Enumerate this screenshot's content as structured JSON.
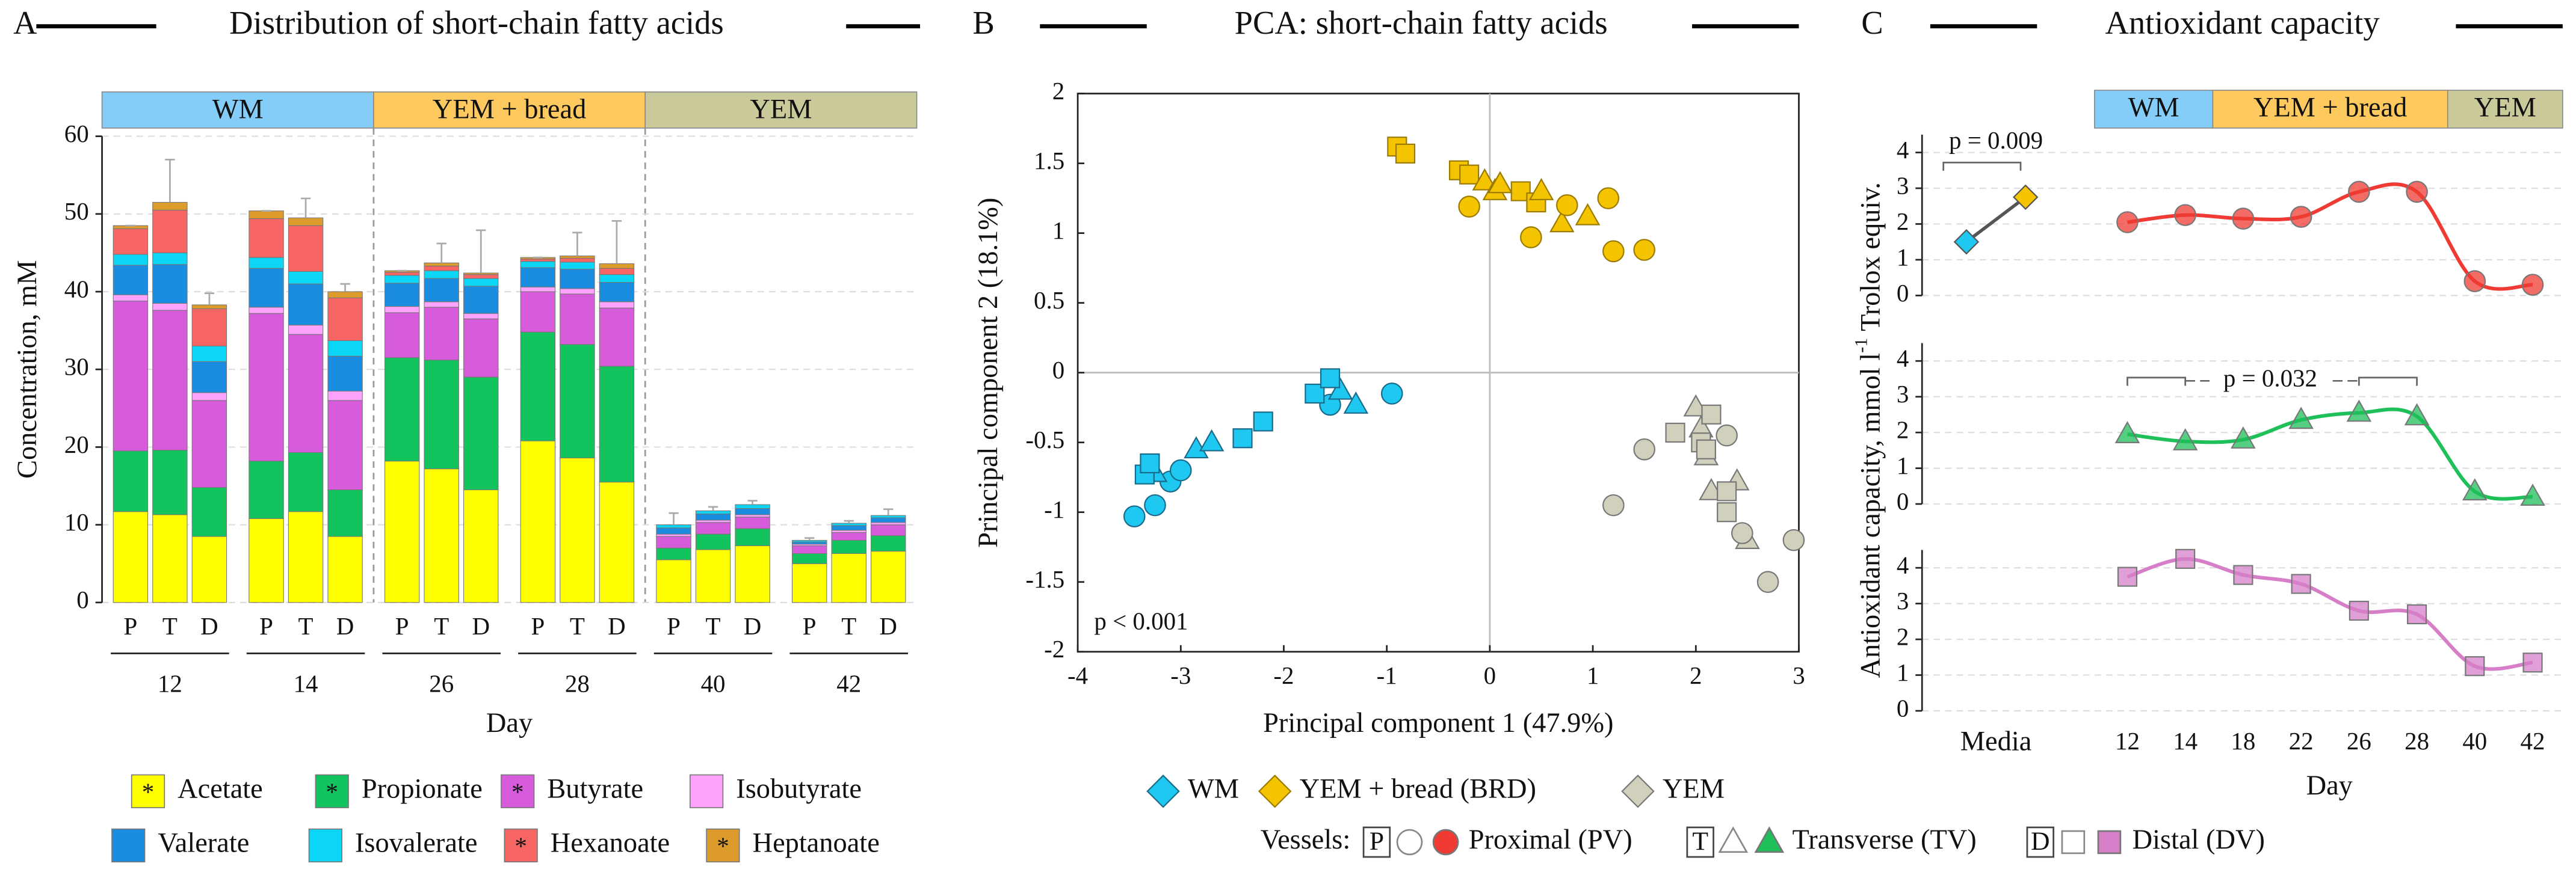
{
  "chart_data": [
    {
      "type": "bar",
      "panel": "A",
      "title": "Distribution of short-chain fatty acids",
      "phases": [
        {
          "name": "WM",
          "color": "#85cdf9"
        },
        {
          "name": "YEM + bread",
          "color": "#fec95f"
        },
        {
          "name": "YEM",
          "color": "#c9c99a"
        }
      ],
      "categories": [
        "P",
        "T",
        "D",
        "P",
        "T",
        "D",
        "P",
        "T",
        "D",
        "P",
        "T",
        "D",
        "P",
        "T",
        "D",
        "P",
        "T",
        "D"
      ],
      "groups": [
        "12",
        "14",
        "26",
        "28",
        "40",
        "42"
      ],
      "xlabel": "Day",
      "ylabel": "Concentration, mM",
      "ylim": [
        0,
        60
      ],
      "yticks": [
        0,
        10,
        20,
        30,
        40,
        50,
        60
      ],
      "grid": true,
      "series": [
        {
          "name": "Acetate",
          "mark": "*",
          "color": "#ffff00",
          "values": [
            11.7,
            11.3,
            8.5,
            10.8,
            11.7,
            8.5,
            18.2,
            17.2,
            14.5,
            20.8,
            18.6,
            15.5,
            5.5,
            6.8,
            7.3,
            5,
            6.3,
            6.6
          ]
        },
        {
          "name": "Propionate",
          "mark": "*",
          "color": "#13c35e",
          "values": [
            7.8,
            8.3,
            6.3,
            7.4,
            7.6,
            6,
            13.3,
            14,
            14.5,
            14,
            14.6,
            14.9,
            1.5,
            2,
            2.2,
            1.3,
            1.7,
            2
          ]
        },
        {
          "name": "Butyrate",
          "mark": "*",
          "color": "#d65cdb",
          "values": [
            19.3,
            18,
            11.2,
            19,
            15.2,
            11.5,
            5.8,
            6.8,
            7.5,
            5.2,
            6.5,
            7.5,
            1.5,
            1.5,
            1.5,
            1,
            1,
            1.4
          ]
        },
        {
          "name": "Isobutyrate",
          "color": "#ffa3ff",
          "values": [
            0.8,
            0.9,
            1,
            0.8,
            1.2,
            1.2,
            0.8,
            0.7,
            0.7,
            0.6,
            0.7,
            0.8,
            0.3,
            0.3,
            0.3,
            0.2,
            0.3,
            0.3
          ]
        },
        {
          "name": "Valerate",
          "color": "#1a8de0",
          "values": [
            3.8,
            5,
            4,
            5,
            5.3,
            4.5,
            3,
            3,
            3.5,
            2.5,
            2.5,
            2.5,
            0.8,
            0.8,
            0.8,
            0.3,
            0.6,
            0.6
          ]
        },
        {
          "name": "Isovalerate",
          "color": "#0bd6f5",
          "values": [
            1.4,
            1.5,
            2,
            1.4,
            1.6,
            2,
            1,
            1,
            1,
            0.8,
            0.9,
            1,
            0.4,
            0.4,
            0.5,
            0.2,
            0.3,
            0.3
          ]
        },
        {
          "name": "Hexanoate",
          "mark": "*",
          "color": "#f76565",
          "values": [
            3.3,
            5.5,
            4.8,
            5,
            5.9,
            5.5,
            0.4,
            0.6,
            0.5,
            0.3,
            0.5,
            0.8,
            0,
            0,
            0,
            0,
            0,
            0
          ]
        },
        {
          "name": "Heptanoate",
          "mark": "*",
          "color": "#dd9b2b",
          "values": [
            0.4,
            1,
            0.5,
            1,
            1,
            0.8,
            0.2,
            0.4,
            0.2,
            0.2,
            0.3,
            0.6,
            0,
            0,
            0,
            0,
            0,
            0
          ]
        }
      ],
      "errors": [
        0,
        5.5,
        1.5,
        0,
        2.5,
        1,
        0,
        2.5,
        5.5,
        0,
        3,
        5.5,
        1.5,
        0.5,
        0.5,
        0.3,
        0.3,
        0.8
      ]
    },
    {
      "type": "scatter",
      "panel": "B",
      "title": "PCA: short-chain fatty acids",
      "xlabel": "Principal component 1 (47.9%)",
      "ylabel": "Principal component 2 (18.1%)",
      "xlim": [
        -4,
        3
      ],
      "xticks": [
        -4,
        -3,
        -2,
        -1,
        0,
        1,
        2,
        3
      ],
      "ylim": [
        -2,
        2
      ],
      "yticks": [
        -2,
        -1.5,
        -1,
        -0.5,
        0,
        0.5,
        1,
        1.5,
        2
      ],
      "zero_lines": true,
      "annotation": "p < 0.001",
      "legend_marker": "diamond",
      "series": [
        {
          "name": "WM",
          "color": "#1ec8f0",
          "stroke": "#1a6a8a",
          "x": [
            -3.45,
            -3.25,
            -3.1,
            -3.0,
            -1.55,
            -0.95,
            -3.25,
            -2.85,
            -2.7,
            -1.45,
            -1.3,
            -3.35,
            -3.3,
            -2.4,
            -2.2,
            -1.7,
            -1.55
          ],
          "values": [
            -1.03,
            -0.95,
            -0.78,
            -0.7,
            -0.23,
            -0.15,
            -0.72,
            -0.55,
            -0.5,
            -0.13,
            -0.23,
            -0.73,
            -0.65,
            -0.47,
            -0.35,
            -0.15,
            -0.04
          ],
          "shapes": [
            "circle",
            "circle",
            "circle",
            "circle",
            "circle",
            "circle",
            "triangle",
            "triangle",
            "triangle",
            "triangle",
            "triangle",
            "square",
            "square",
            "square",
            "square",
            "square",
            "square"
          ]
        },
        {
          "name": "YEM + bread (BRD)",
          "color": "#f5c400",
          "stroke": "#9a7a00",
          "x": [
            -0.9,
            -0.82,
            -0.3,
            -0.2,
            0.3,
            0.45,
            -0.05,
            0.05,
            0.1,
            0.5,
            0.7,
            0.95,
            -0.2,
            0.4,
            0.75,
            1.15,
            1.2,
            1.5
          ],
          "values": [
            1.62,
            1.57,
            1.45,
            1.42,
            1.3,
            1.22,
            1.37,
            1.3,
            1.35,
            1.3,
            1.07,
            1.12,
            1.19,
            0.97,
            1.2,
            1.25,
            0.87,
            0.88
          ],
          "shapes": [
            "square",
            "square",
            "square",
            "square",
            "square",
            "square",
            "triangle",
            "triangle",
            "triangle",
            "triangle",
            "triangle",
            "triangle",
            "circle",
            "circle",
            "circle",
            "circle",
            "circle",
            "circle"
          ]
        },
        {
          "name": "YEM",
          "color": "#d0d0bc",
          "stroke": "#777777",
          "x": [
            2.0,
            2.05,
            2.1,
            2.15,
            2.4,
            2.5,
            1.8,
            2.05,
            2.1,
            2.15,
            2.3,
            2.3,
            1.2,
            1.5,
            2.3,
            2.45,
            2.7,
            2.95
          ],
          "values": [
            -0.25,
            -0.4,
            -0.6,
            -0.85,
            -0.78,
            -1.2,
            -0.43,
            -0.5,
            -0.55,
            -0.3,
            -0.85,
            -1.0,
            -0.95,
            -0.55,
            -0.45,
            -1.15,
            -1.5,
            -1.2
          ],
          "shapes": [
            "triangle",
            "triangle",
            "triangle",
            "triangle",
            "triangle",
            "triangle",
            "square",
            "square",
            "square",
            "square",
            "square",
            "square",
            "circle",
            "circle",
            "circle",
            "circle",
            "circle",
            "circle"
          ]
        }
      ]
    },
    {
      "type": "line",
      "panel": "C",
      "title": "Antioxidant capacity",
      "phases": [
        {
          "name": "WM",
          "color": "#85cdf9"
        },
        {
          "name": "YEM + bread",
          "color": "#fec95f"
        },
        {
          "name": "YEM",
          "color": "#c9c99a"
        }
      ],
      "categories": [
        "Media",
        "12",
        "14",
        "18",
        "22",
        "26",
        "28",
        "40",
        "42"
      ],
      "xlabel": "Day",
      "ylabel": "Antioxidant capacity, mmol l",
      "ylabel_sup": "-1",
      "ylabel_end": "Trolox equiv.",
      "ylim": [
        0,
        4.5
      ],
      "yticks": [
        0,
        1,
        2,
        3,
        4
      ],
      "grid": true,
      "media_values": [
        1.5,
        2.75
      ],
      "media_colors": [
        "#1ec8f0",
        "#f5c400"
      ],
      "annotations": [
        "p = 0.009",
        "p = 0.032"
      ],
      "series": [
        {
          "name": "Proximal (PV)",
          "letter": "P",
          "shape": "circle",
          "color": "#ef3b33",
          "values": [
            null,
            2.05,
            2.25,
            2.15,
            2.2,
            2.9,
            2.9,
            0.4,
            0.3
          ]
        },
        {
          "name": "Transverse (TV)",
          "letter": "T",
          "shape": "triangle",
          "color": "#1fbf5a",
          "values": [
            null,
            1.95,
            1.75,
            1.8,
            2.35,
            2.55,
            2.45,
            0.35,
            0.2
          ]
        },
        {
          "name": "Distal (DV)",
          "letter": "D",
          "shape": "square",
          "color": "#d67fc8",
          "values": [
            null,
            3.75,
            4.25,
            3.8,
            3.55,
            2.8,
            2.7,
            1.25,
            1.35
          ]
        }
      ]
    }
  ],
  "vessels_label": "Vessels:"
}
